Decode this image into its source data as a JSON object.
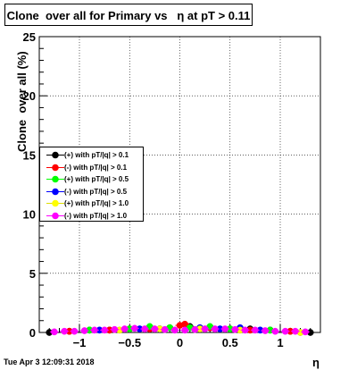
{
  "chart_data": {
    "type": "scatter",
    "title": "Clone  over all for Primary vs   η at pT > 0.11",
    "xlabel": "η",
    "ylabel": "Clone  over all (%)",
    "xlim": [
      -1.4,
      1.4
    ],
    "ylim": [
      0,
      25
    ],
    "x_ticks": [
      -1,
      -0.5,
      0,
      0.5,
      1
    ],
    "x_tick_labels": [
      "−1",
      "−0.5",
      "0",
      "0.5",
      "1"
    ],
    "y_ticks": [
      0,
      5,
      10,
      15,
      20,
      25
    ],
    "y_tick_labels": [
      "0",
      "5",
      "10",
      "15",
      "20",
      "25"
    ],
    "grid": true,
    "legend_position": "left-middle",
    "series": [
      {
        "name": "(+) with pT/|q| > 0.1",
        "color": "#000000",
        "x": [
          -1.3,
          -1.1,
          -0.9,
          -0.7,
          -0.5,
          -0.3,
          -0.1,
          0.1,
          0.3,
          0.5,
          0.7,
          0.9,
          1.1,
          1.3
        ],
        "y": [
          0.0,
          0.1,
          0.2,
          0.2,
          0.3,
          0.3,
          0.4,
          0.5,
          0.4,
          0.3,
          0.3,
          0.2,
          0.1,
          0.0
        ]
      },
      {
        "name": "(-) with pT/|q| > 0.1",
        "color": "#ff0000",
        "x": [
          -1.1,
          -0.7,
          -0.3,
          0.0,
          0.05,
          0.3,
          0.7,
          1.1
        ],
        "y": [
          0.1,
          0.2,
          0.3,
          0.6,
          0.7,
          0.4,
          0.2,
          0.1
        ]
      },
      {
        "name": "(+) with pT/|q| > 0.5",
        "color": "#00ff00",
        "x": [
          -0.9,
          -0.5,
          -0.3,
          -0.1,
          0.1,
          0.3,
          0.5,
          0.9
        ],
        "y": [
          0.2,
          0.3,
          0.5,
          0.4,
          0.4,
          0.5,
          0.3,
          0.2
        ]
      },
      {
        "name": "(-) with pT/|q| > 0.5",
        "color": "#0000ff",
        "x": [
          -0.8,
          -0.4,
          -0.2,
          0.2,
          0.4,
          0.6,
          0.8
        ],
        "y": [
          0.2,
          0.3,
          0.3,
          0.4,
          0.3,
          0.4,
          0.2
        ]
      },
      {
        "name": "(+) with pT/|q| > 1.0",
        "color": "#ffff00",
        "x": [
          -0.6,
          -0.2,
          0.2,
          0.6,
          1.2
        ],
        "y": [
          0.2,
          0.3,
          0.3,
          0.2,
          0.0
        ]
      },
      {
        "name": "(-) with pT/|q| > 1.0",
        "color": "#ff00ff",
        "x": [
          -1.25,
          -1.15,
          -1.05,
          -0.95,
          -0.85,
          -0.75,
          -0.65,
          -0.55,
          -0.45,
          -0.35,
          -0.25,
          -0.15,
          -0.05,
          0.05,
          0.15,
          0.25,
          0.35,
          0.45,
          0.55,
          0.65,
          0.75,
          0.85,
          0.95,
          1.05,
          1.15,
          1.25
        ],
        "y": [
          0.05,
          0.1,
          0.1,
          0.15,
          0.2,
          0.2,
          0.25,
          0.3,
          0.35,
          0.3,
          0.3,
          0.25,
          0.2,
          0.2,
          0.25,
          0.3,
          0.3,
          0.3,
          0.25,
          0.2,
          0.2,
          0.15,
          0.1,
          0.1,
          0.1,
          0.05
        ]
      }
    ]
  },
  "footer": "Tue Apr  3 12:09:31 2018"
}
